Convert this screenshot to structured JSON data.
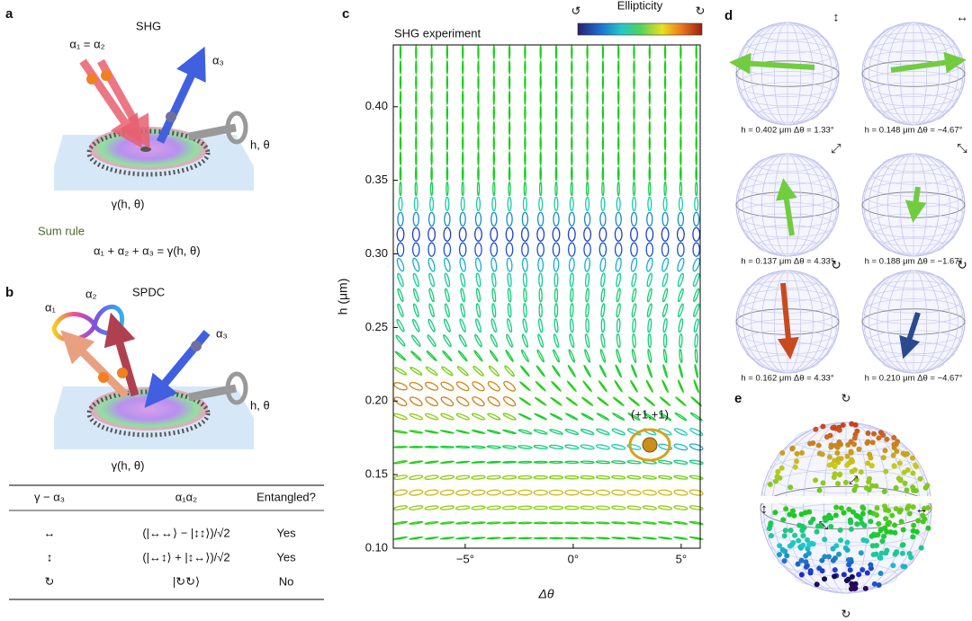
{
  "panel_a": {
    "label": "a",
    "title": "SHG",
    "inputs": "α₁ = α₂",
    "output": "α₃",
    "knob": "h, θ",
    "grating": "γ(h, θ)",
    "sum_rule_label": "Sum rule",
    "sum_rule": "α₁ + α₂ + α₃ = γ(h, θ)"
  },
  "panel_b": {
    "label": "b",
    "title": "SPDC",
    "photon_1": "α₁",
    "photon_2": "α₂",
    "pump": "α₃",
    "knob": "h, θ",
    "grating": "γ(h, θ)"
  },
  "table": {
    "header": [
      "γ − α₃",
      "α₁α₂",
      "Entangled?"
    ],
    "rows": [
      [
        "↔",
        "(|↔↔⟩ − |↕↕⟩)/√2",
        "Yes"
      ],
      [
        "↕",
        "(|↔↕⟩ + |↕↔⟩)/√2",
        "Yes"
      ],
      [
        "↻",
        "|↻↻⟩",
        "No"
      ]
    ]
  },
  "panel_c": {
    "label": "c",
    "title": "SHG experiment",
    "colorbar_title": "Ellipticity",
    "colorbar_left": "↺",
    "colorbar_right": "↻",
    "xlabel": "Δθ",
    "ylabel": "h (μm)",
    "annotation": "(+1,+1)",
    "xlim": [
      -8.33,
      5.88
    ],
    "ylim": [
      0.1,
      0.442
    ],
    "xticks": [
      {
        "value": -5,
        "label": "−5°"
      },
      {
        "value": 0,
        "label": "0°"
      },
      {
        "value": 5,
        "label": "5°"
      }
    ],
    "yticks": [
      {
        "value": 0.1,
        "label": "0.10"
      },
      {
        "value": 0.15,
        "label": "0.15"
      },
      {
        "value": 0.2,
        "label": "0.20"
      },
      {
        "value": 0.25,
        "label": "0.25"
      },
      {
        "value": 0.3,
        "label": "0.30"
      },
      {
        "value": 0.35,
        "label": "0.35"
      },
      {
        "value": 0.4,
        "label": "0.40"
      }
    ]
  },
  "panel_d": {
    "label": "d",
    "spheres": [
      {
        "symbol": "↕",
        "caption": "h = 0.402 μm Δθ = 1.33°"
      },
      {
        "symbol": "↔",
        "caption": "h = 0.148 μm Δθ = −4.67°"
      },
      {
        "symbol": "⤢",
        "caption": "h = 0.137 μm Δθ = 4.33°"
      },
      {
        "symbol": "⤡",
        "caption": "h = 0.188 μm Δθ = −1.67°"
      },
      {
        "symbol": "↻",
        "caption": "h = 0.162 μm Δθ = 4.33°"
      },
      {
        "symbol": "↻",
        "caption": "h = 0.210 μm Δθ = −4.67°"
      }
    ]
  },
  "panel_e": {
    "label": "e",
    "top": "↻",
    "bottom": "↻",
    "left": "↕",
    "right": "↔",
    "inner_1": "⤢",
    "inner_2": "⤡"
  }
}
